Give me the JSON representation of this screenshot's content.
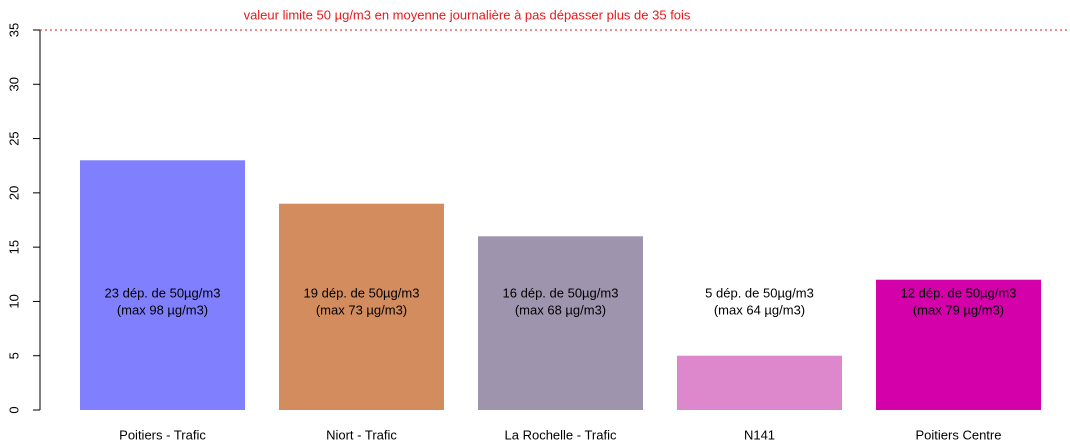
{
  "chart_data": {
    "type": "bar",
    "categories": [
      "Poitiers - Trafic",
      "Niort - Trafic",
      "La Rochelle - Trafic",
      "N141",
      "Poitiers Centre"
    ],
    "values": [
      23,
      19,
      16,
      5,
      12
    ],
    "value_labels": [
      "23 dép. de 50µg/m3",
      "19 dép. de 50µg/m3",
      "16 dép. de 50µg/m3",
      "5 dép. de 50µg/m3",
      "12 dép. de 50µg/m3"
    ],
    "max_labels": [
      "(max  98 µg/m3)",
      "(max  73 µg/m3)",
      "(max  68 µg/m3)",
      "(max  64 µg/m3)",
      "(max  79 µg/m3)"
    ],
    "colors": [
      "#8080ff",
      "#d28c5e",
      "#9f94ad",
      "#dd88cc",
      "#d400aa"
    ],
    "ylim": [
      0,
      35
    ],
    "yticks": [
      0,
      5,
      10,
      15,
      20,
      25,
      30,
      35
    ],
    "limit_line": {
      "value": 35,
      "label": "valeur limite 50 µg/m3 en moyenne journalière à pas dépasser plus de 35 fois",
      "color": "#e41a1c"
    }
  }
}
